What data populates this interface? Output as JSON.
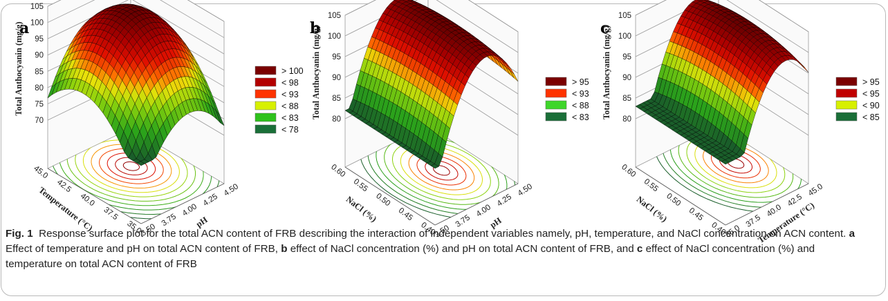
{
  "figure_label": "Fig. 1",
  "caption": {
    "intro": "Response surface plot for the total ACN content of FRB describing the interaction of independent variables namely, pH, temperature, and NaCl concentration on ACN content.",
    "part_a_label": "a",
    "part_a_text": "Effect of temperature and pH on total ACN content of FRB,",
    "part_b_label": "b",
    "part_b_text": "effect of NaCl concentration (%) and pH on total ACN content of FRB, and",
    "part_c_label": "c",
    "part_c_text": "effect of NaCl concentration (%) and temperature on total ACN content of FRB"
  },
  "chart_data": [
    {
      "type": "surface",
      "panel_label": "a",
      "zlabel": "Total Anthocyanin (mg/g)",
      "xlabel": "Temperature (°C)",
      "ylabel": "pH",
      "z_ticks": [
        "105",
        "100",
        "95",
        "90",
        "85",
        "80",
        "75",
        "70"
      ],
      "x_ticks": [
        "45.0",
        "42.5",
        "40.0",
        "37.5",
        "35.0"
      ],
      "y_ticks": [
        "3.50",
        "3.75",
        "4.00",
        "4.25",
        "4.50"
      ],
      "x_range": [
        35.0,
        45.0
      ],
      "y_range": [
        3.5,
        4.5
      ],
      "z_range": [
        70,
        105
      ],
      "legend": [
        {
          "label": "> 100",
          "color": "#7a0000"
        },
        {
          "label": "< 98",
          "color": "#b30000"
        },
        {
          "label": "< 93",
          "color": "#ff3300"
        },
        {
          "label": "< 88",
          "color": "#d7f000"
        },
        {
          "label": "< 83",
          "color": "#2ec21c"
        },
        {
          "label": "< 78",
          "color": "#1a6f38"
        }
      ]
    },
    {
      "type": "surface",
      "panel_label": "b",
      "zlabel": "Total Anthocyanin (mg/g)",
      "xlabel": "NaCl (%)",
      "ylabel": "pH",
      "z_ticks": [
        "105",
        "100",
        "95",
        "90",
        "85",
        "80"
      ],
      "x_ticks": [
        "0.60",
        "0.55",
        "0.50",
        "0.45",
        "0.40"
      ],
      "y_ticks": [
        "3.50",
        "3.75",
        "4.00",
        "4.25",
        "4.50"
      ],
      "x_range": [
        0.4,
        0.6
      ],
      "y_range": [
        3.5,
        4.5
      ],
      "z_range": [
        80,
        105
      ],
      "legend": [
        {
          "label": "> 95",
          "color": "#7a0000"
        },
        {
          "label": "< 93",
          "color": "#ff3300"
        },
        {
          "label": "< 88",
          "color": "#3ed62a"
        },
        {
          "label": "< 83",
          "color": "#1a6f38"
        }
      ]
    },
    {
      "type": "surface",
      "panel_label": "c",
      "zlabel": "Total Anthocyanin (mg/g)",
      "xlabel": "NaCl (%)",
      "ylabel": "Temperature (°C)",
      "z_ticks": [
        "105",
        "100",
        "95",
        "90",
        "85",
        "80"
      ],
      "x_ticks": [
        "0.60",
        "0.55",
        "0.50",
        "0.45",
        "0.40"
      ],
      "y_ticks": [
        "35.0",
        "37.5",
        "40.0",
        "42.5",
        "45.0"
      ],
      "x_range": [
        0.4,
        0.6
      ],
      "y_range": [
        35.0,
        45.0
      ],
      "z_range": [
        80,
        105
      ],
      "legend": [
        {
          "label": "> 95",
          "color": "#7a0000"
        },
        {
          "label": "< 95",
          "color": "#c00000"
        },
        {
          "label": "< 90",
          "color": "#d7f000"
        },
        {
          "label": "< 85",
          "color": "#1a6f38"
        }
      ]
    }
  ]
}
